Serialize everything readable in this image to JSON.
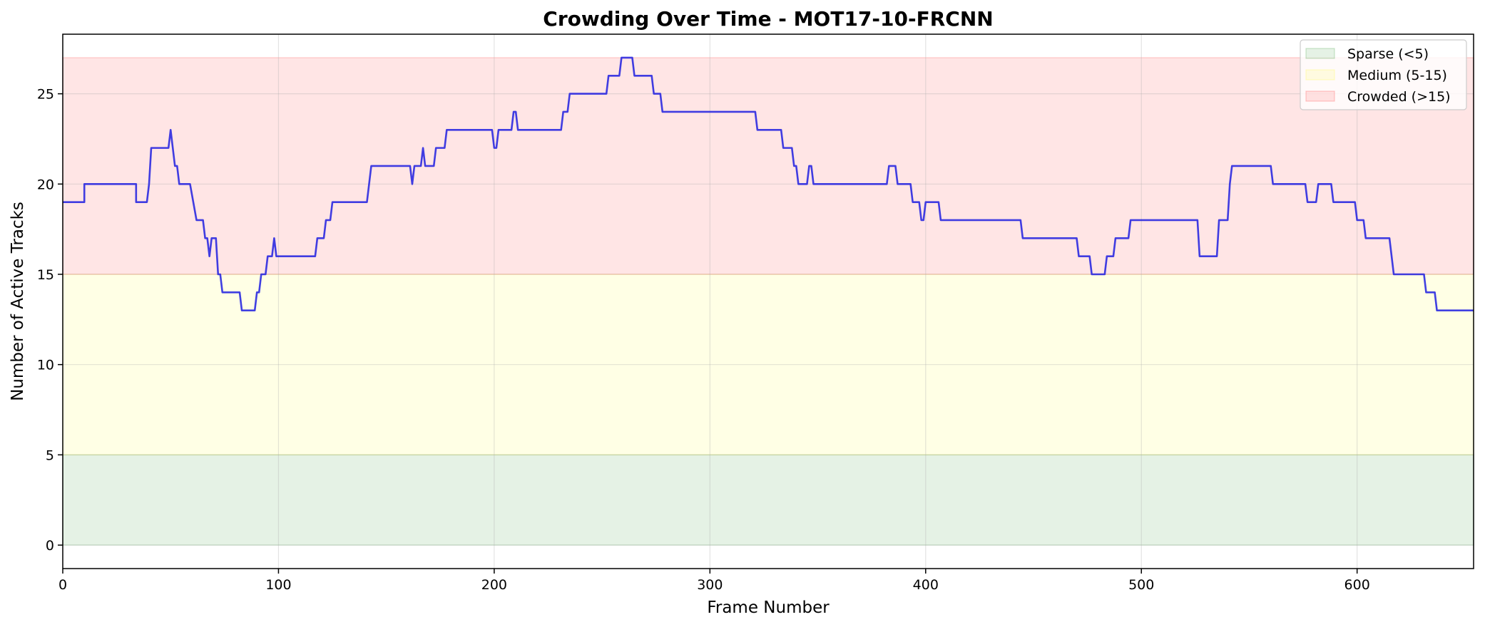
{
  "chart_data": {
    "type": "line",
    "title": "Crowding Over Time - MOT17-10-FRCNN",
    "xlabel": "Frame Number",
    "ylabel": "Number of Active Tracks",
    "xlim": [
      0,
      654
    ],
    "ylim": [
      -1.3,
      28.3
    ],
    "xticks": [
      0,
      100,
      200,
      300,
      400,
      500,
      600
    ],
    "yticks": [
      0,
      5,
      10,
      15,
      20,
      25
    ],
    "grid": true,
    "legend_position": "top-right",
    "bands": [
      {
        "name": "Sparse (<5)",
        "y0": 0,
        "y1": 5,
        "color": "#008000"
      },
      {
        "name": "Medium (5-15)",
        "y0": 5,
        "y1": 15,
        "color": "#ffff00"
      },
      {
        "name": "Crowded (>15)",
        "y0": 15,
        "y1": 27,
        "color": "#ff0000"
      }
    ],
    "series": [
      {
        "color": "#1f1fe0",
        "points": [
          [
            0,
            19
          ],
          [
            10,
            19
          ],
          [
            10,
            20
          ],
          [
            34,
            20
          ],
          [
            34,
            19
          ],
          [
            39,
            19
          ],
          [
            40,
            20
          ],
          [
            41,
            22
          ],
          [
            49,
            22
          ],
          [
            50,
            23
          ],
          [
            51,
            22
          ],
          [
            52,
            21
          ],
          [
            53,
            21
          ],
          [
            54,
            20
          ],
          [
            59,
            20
          ],
          [
            62,
            18
          ],
          [
            65,
            18
          ],
          [
            66,
            17
          ],
          [
            67,
            17
          ],
          [
            68,
            16
          ],
          [
            69,
            17
          ],
          [
            71,
            17
          ],
          [
            72,
            15
          ],
          [
            73,
            15
          ],
          [
            74,
            14
          ],
          [
            82,
            14
          ],
          [
            83,
            13
          ],
          [
            89,
            13
          ],
          [
            90,
            14
          ],
          [
            91,
            14
          ],
          [
            92,
            15
          ],
          [
            94,
            15
          ],
          [
            95,
            16
          ],
          [
            97,
            16
          ],
          [
            98,
            17
          ],
          [
            99,
            16
          ],
          [
            117,
            16
          ],
          [
            118,
            17
          ],
          [
            121,
            17
          ],
          [
            122,
            18
          ],
          [
            124,
            18
          ],
          [
            125,
            19
          ],
          [
            141,
            19
          ],
          [
            143,
            21
          ],
          [
            161,
            21
          ],
          [
            162,
            20
          ],
          [
            163,
            21
          ],
          [
            166,
            21
          ],
          [
            167,
            22
          ],
          [
            168,
            21
          ],
          [
            172,
            21
          ],
          [
            173,
            22
          ],
          [
            177,
            22
          ],
          [
            178,
            23
          ],
          [
            199,
            23
          ],
          [
            200,
            22
          ],
          [
            201,
            22
          ],
          [
            202,
            23
          ],
          [
            208,
            23
          ],
          [
            209,
            24
          ],
          [
            210,
            24
          ],
          [
            211,
            23
          ],
          [
            231,
            23
          ],
          [
            232,
            24
          ],
          [
            234,
            24
          ],
          [
            235,
            25
          ],
          [
            252,
            25
          ],
          [
            253,
            26
          ],
          [
            258,
            26
          ],
          [
            259,
            27
          ],
          [
            264,
            27
          ],
          [
            265,
            26
          ],
          [
            273,
            26
          ],
          [
            274,
            25
          ],
          [
            277,
            25
          ],
          [
            278,
            24
          ],
          [
            321,
            24
          ],
          [
            322,
            23
          ],
          [
            333,
            23
          ],
          [
            334,
            22
          ],
          [
            338,
            22
          ],
          [
            339,
            21
          ],
          [
            340,
            21
          ],
          [
            341,
            20
          ],
          [
            345,
            20
          ],
          [
            346,
            21
          ],
          [
            347,
            21
          ],
          [
            348,
            20
          ],
          [
            382,
            20
          ],
          [
            383,
            21
          ],
          [
            386,
            21
          ],
          [
            387,
            20
          ],
          [
            393,
            20
          ],
          [
            394,
            19
          ],
          [
            397,
            19
          ],
          [
            398,
            18
          ],
          [
            399,
            18
          ],
          [
            400,
            19
          ],
          [
            406,
            19
          ],
          [
            407,
            18
          ],
          [
            444,
            18
          ],
          [
            445,
            17
          ],
          [
            470,
            17
          ],
          [
            471,
            16
          ],
          [
            476,
            16
          ],
          [
            477,
            15
          ],
          [
            483,
            15
          ],
          [
            484,
            16
          ],
          [
            487,
            16
          ],
          [
            488,
            17
          ],
          [
            494,
            17
          ],
          [
            495,
            18
          ],
          [
            526,
            18
          ],
          [
            527,
            16
          ],
          [
            535,
            16
          ],
          [
            536,
            18
          ],
          [
            540,
            18
          ],
          [
            541,
            20
          ],
          [
            542,
            21
          ],
          [
            560,
            21
          ],
          [
            561,
            20
          ],
          [
            576,
            20
          ],
          [
            577,
            19
          ],
          [
            581,
            19
          ],
          [
            582,
            20
          ],
          [
            588,
            20
          ],
          [
            589,
            19
          ],
          [
            599,
            19
          ],
          [
            600,
            18
          ],
          [
            603,
            18
          ],
          [
            604,
            17
          ],
          [
            615,
            17
          ],
          [
            617,
            15
          ],
          [
            631,
            15
          ],
          [
            632,
            14
          ],
          [
            636,
            14
          ],
          [
            637,
            13
          ],
          [
            654,
            13
          ]
        ]
      }
    ]
  }
}
